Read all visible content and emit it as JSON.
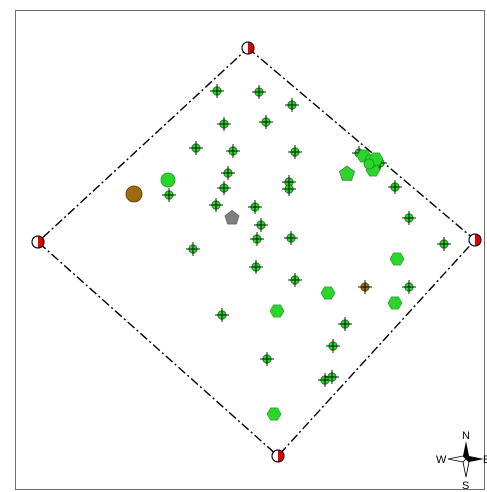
{
  "map": {
    "compass": {
      "north": "N",
      "south": "S",
      "east": "E",
      "west": "W"
    },
    "colors": {
      "boundary_line": "#000000",
      "vertex_red": "#e00000",
      "point_green": "#2bd62b",
      "point_brown": "#a06a10",
      "point_gray": "#808080",
      "frame": "#6e6e6e"
    },
    "boundary_vertices": [
      "north",
      "east",
      "south",
      "west"
    ],
    "feature_counts": {
      "green_cross_points": 33,
      "green_hexagons": 10,
      "green_circles": 2,
      "green_pentagon": 1,
      "brown_circle": 1,
      "brown_cross_point": 1,
      "gray_pentagon": 1
    },
    "icons": [
      "compass-rose-icon",
      "hexagon-icon",
      "cross-point-icon",
      "half-circle-vertex-icon"
    ]
  }
}
